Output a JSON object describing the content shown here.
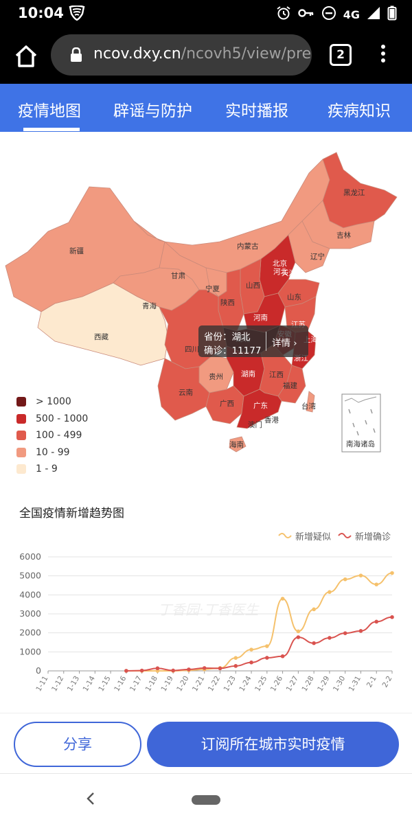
{
  "status_bar": {
    "time": "10:04",
    "network": "4G"
  },
  "browser": {
    "url_host": "ncov.dxy.cn",
    "url_path": "/ncovh5/view/pre",
    "tab_count": "2"
  },
  "nav": {
    "tabs": [
      {
        "label": "疫情地图",
        "active": true
      },
      {
        "label": "辟谣与防护",
        "active": false
      },
      {
        "label": "实时播报",
        "active": false
      },
      {
        "label": "疾病知识",
        "active": false
      }
    ]
  },
  "map": {
    "provinces": [
      "新疆",
      "西藏",
      "青海",
      "甘肃",
      "宁夏",
      "内蒙古",
      "黑龙江",
      "吉林",
      "辽宁",
      "北京",
      "河北",
      "天津",
      "山西",
      "陕西",
      "山东",
      "河南",
      "江苏",
      "四川",
      "湖北",
      "安徽",
      "上海",
      "浙江",
      "贵州",
      "湖南",
      "江西",
      "云南",
      "广西",
      "广东",
      "福建",
      "台湾",
      "香港",
      "澳门",
      "海南",
      "南海诸岛"
    ],
    "legend": [
      {
        "label": "> 1000",
        "color": "#731919"
      },
      {
        "label": "500 - 1000",
        "color": "#c92a2a"
      },
      {
        "label": "100 - 499",
        "color": "#e05a4c"
      },
      {
        "label": "10 - 99",
        "color": "#f19a80"
      },
      {
        "label": "1 - 9",
        "color": "#fde9cf"
      }
    ],
    "tooltip": {
      "province_line": "省份：湖北",
      "confirmed_line": "确诊：11177",
      "detail_label": "详情 ›"
    }
  },
  "chart_data": {
    "type": "line",
    "title": "全国疫情新增趋势图",
    "watermark": "丁香园·丁香医生",
    "categories": [
      "1-11",
      "1-12",
      "1-13",
      "1-14",
      "1-15",
      "1-16",
      "1-17",
      "1-18",
      "1-19",
      "1-20",
      "1-21",
      "1-22",
      "1-23",
      "1-24",
      "1-25",
      "1-26",
      "1-27",
      "1-28",
      "1-29",
      "1-30",
      "1-31",
      "2-1",
      "2-2"
    ],
    "ylim": [
      0,
      6000
    ],
    "yticks": [
      0,
      1000,
      2000,
      3000,
      4000,
      5000,
      6000
    ],
    "legend_position": "top-right",
    "grid": true,
    "series": [
      {
        "name": "新增疑似",
        "color": "#f5c16c",
        "values": [
          null,
          null,
          null,
          null,
          null,
          0,
          0,
          0,
          0,
          30,
          80,
          150,
          680,
          1120,
          1300,
          3800,
          2080,
          3240,
          4150,
          4820,
          5020,
          4550,
          5150
        ]
      },
      {
        "name": "新增确诊",
        "color": "#d9534f",
        "values": [
          null,
          null,
          null,
          null,
          null,
          4,
          17,
          136,
          19,
          77,
          149,
          131,
          259,
          444,
          688,
          769,
          1771,
          1459,
          1737,
          1982,
          2102,
          2590,
          2829
        ]
      }
    ]
  },
  "bottom": {
    "share_label": "分享",
    "subscribe_label": "订阅所在城市实时疫情"
  }
}
